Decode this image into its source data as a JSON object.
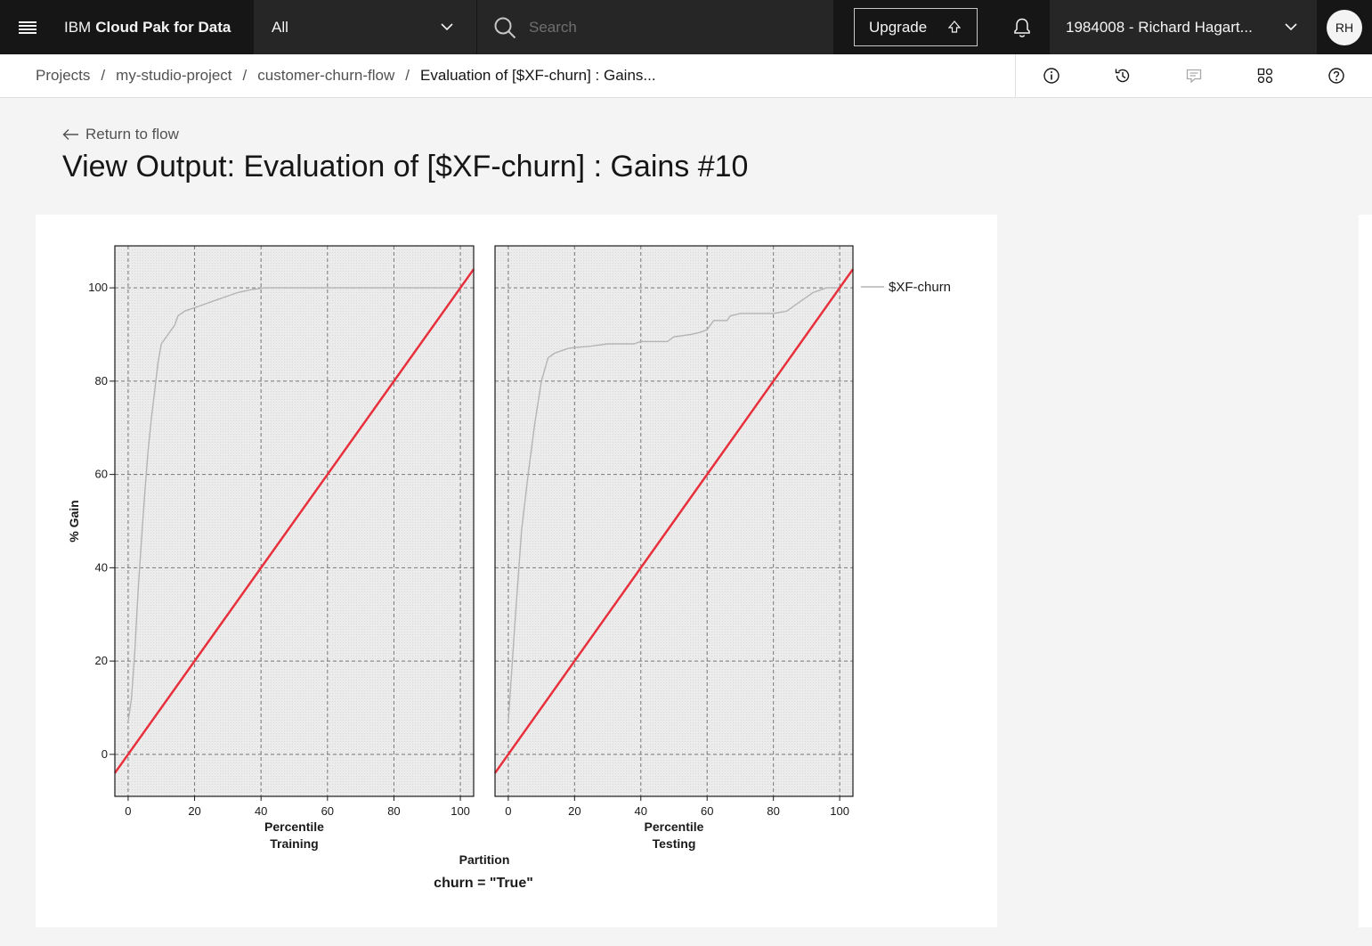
{
  "header": {
    "brand_plain": "IBM",
    "brand_bold": "Cloud Pak for Data",
    "scope_value": "All",
    "search_placeholder": "Search",
    "upgrade_label": "Upgrade",
    "account_label": "1984008 - Richard Hagart...",
    "avatar_initials": "RH"
  },
  "breadcrumb": {
    "items": [
      "Projects",
      "my-studio-project",
      "customer-churn-flow"
    ],
    "current": "Evaluation of [$XF-churn] : Gains...",
    "separator": "/"
  },
  "toolbar_icons": [
    "info-icon",
    "history-icon",
    "comment-icon",
    "apps-icon",
    "help-icon"
  ],
  "page": {
    "return_label": "Return to flow",
    "title": "View Output: Evaluation of [$XF-churn] : Gains #10"
  },
  "chart_data": {
    "type": "line",
    "ylabel": "% Gain",
    "xlabel": "Percentile",
    "xlim": [
      -4,
      104
    ],
    "ylim": [
      -9,
      109
    ],
    "xticks": [
      0,
      20,
      40,
      60,
      80,
      100
    ],
    "yticks": [
      0,
      20,
      40,
      60,
      80,
      100
    ],
    "grid": true,
    "legend": {
      "position": "right",
      "entries": [
        "$XF-churn"
      ]
    },
    "group_title": "Partition",
    "footer": "churn = \"True\"",
    "colors": {
      "model": "#b4b4b4",
      "baseline": "#e8303c",
      "plot_bg": "#ebebeb"
    },
    "panels": [
      {
        "label": "Training",
        "series": [
          {
            "name": "$XF-churn",
            "x": [
              0,
              1,
              2,
              3,
              4,
              5,
              6,
              7,
              8,
              9,
              10,
              11,
              12,
              13,
              14,
              15,
              17,
              19,
              21,
              23,
              25,
              27,
              29,
              31,
              33,
              35,
              37,
              39,
              41,
              45,
              50,
              60,
              70,
              80,
              90,
              100
            ],
            "y": [
              7,
              12,
              22,
              35,
              46,
              56,
              65,
              72,
              78,
              84,
              88,
              89,
              90,
              91,
              92,
              94,
              95,
              95.5,
              96,
              96.5,
              97,
              97.5,
              98,
              98.5,
              99,
              99.3,
              99.6,
              99.8,
              100,
              100,
              100,
              100,
              100,
              100,
              100,
              100
            ]
          },
          {
            "name": "",
            "x": [
              -4,
              104
            ],
            "y": [
              -4,
              104
            ]
          }
        ]
      },
      {
        "label": "Testing",
        "series": [
          {
            "name": "$XF-churn",
            "x": [
              0,
              2,
              4,
              6,
              8,
              10,
              12,
              14,
              16,
              18,
              20,
              25,
              30,
              38,
              40,
              48,
              50,
              55,
              58,
              60,
              61,
              62,
              66,
              67,
              70,
              80,
              84,
              86,
              88,
              90,
              92,
              94,
              96,
              100
            ],
            "y": [
              7,
              28,
              48,
              60,
              71,
              80,
              85,
              86,
              86.5,
              87,
              87.2,
              87.5,
              88,
              88,
              88.5,
              88.5,
              89.5,
              90,
              90.5,
              91,
              92,
              93,
              93,
              94,
              94.5,
              94.5,
              95,
              96,
              97,
              98,
              99,
              99.5,
              100,
              100
            ]
          },
          {
            "name": "",
            "x": [
              -4,
              104
            ],
            "y": [
              -4,
              104
            ]
          }
        ]
      }
    ]
  }
}
